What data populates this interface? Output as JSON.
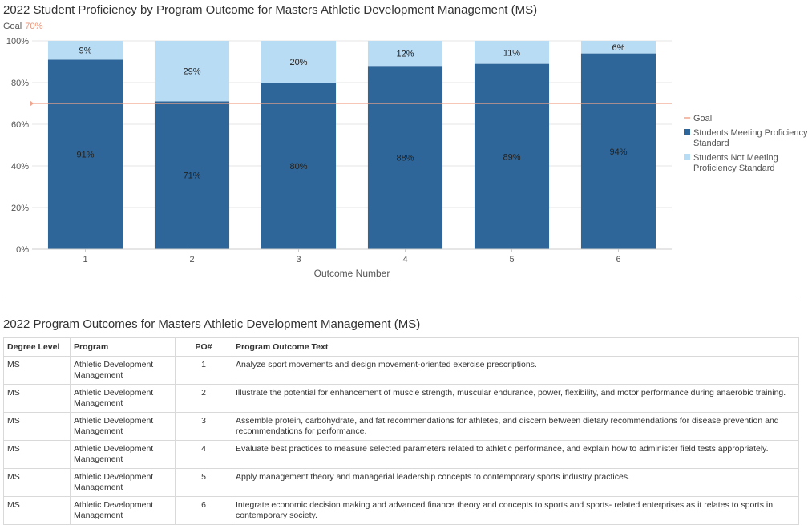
{
  "chart_title": "2022 Student Proficiency by Program Outcome for Masters Athletic Development Management (MS)",
  "goal_header": {
    "label": "Goal",
    "value": "70%"
  },
  "colors": {
    "meeting": "#2f6699",
    "not_meeting": "#b9dcf5",
    "goal": "#f0a58c",
    "grid": "#e5e5e5"
  },
  "chart_data": {
    "type": "bar",
    "stacked": true,
    "categories": [
      "1",
      "2",
      "3",
      "4",
      "5",
      "6"
    ],
    "series": [
      {
        "name": "Students Meeting Proficiency Standard",
        "values": [
          91,
          71,
          80,
          88,
          89,
          94
        ],
        "labels": [
          "91%",
          "71%",
          "80%",
          "88%",
          "89%",
          "94%"
        ]
      },
      {
        "name": "Students Not Meeting Proficiency Standard",
        "values": [
          9,
          29,
          20,
          12,
          11,
          6
        ],
        "labels": [
          "9%",
          "29%",
          "20%",
          "12%",
          "11%",
          "6%"
        ]
      }
    ],
    "goal": {
      "name": "Goal",
      "value": 70
    },
    "xlabel": "Outcome Number",
    "ylabel": "",
    "ylim": [
      0,
      100
    ],
    "yticks": [
      "0%",
      "20%",
      "40%",
      "60%",
      "80%",
      "100%"
    ],
    "grid": true,
    "legend_position": "right"
  },
  "table": {
    "title": "2022 Program Outcomes for Masters Athletic Development Management (MS)",
    "headers": [
      "Degree Level",
      "Program",
      "PO#",
      "Program Outcome Text"
    ],
    "rows": [
      [
        "MS",
        "Athletic Development Management",
        "1",
        "Analyze sport movements and design movement-oriented exercise prescriptions."
      ],
      [
        "MS",
        "Athletic Development Management",
        "2",
        "Illustrate the potential for enhancement of muscle strength, muscular endurance, power, flexibility, and motor performance during anaerobic training."
      ],
      [
        "MS",
        "Athletic Development Management",
        "3",
        "Assemble protein, carbohydrate, and fat recommendations for athletes, and discern between dietary recommendations for disease prevention and recommendations for performance."
      ],
      [
        "MS",
        "Athletic Development Management",
        "4",
        "Evaluate best practices to measure selected parameters related to athletic performance, and explain how to administer field tests appropriately."
      ],
      [
        "MS",
        "Athletic Development Management",
        "5",
        "Apply management theory and managerial leadership concepts to contemporary sports industry practices."
      ],
      [
        "MS",
        "Athletic Development Management",
        "6",
        "Integrate economic decision making and advanced finance theory and concepts to sports and sports- related enterprises as it relates to sports in contemporary society."
      ]
    ]
  }
}
